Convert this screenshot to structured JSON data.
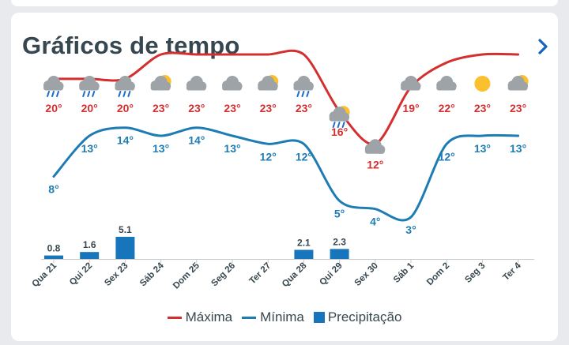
{
  "card": {
    "title": "Gráficos de tempo"
  },
  "colors": {
    "max": "#d32f2f",
    "min": "#1e7cb4",
    "precip": "#1675bb",
    "label": "#37474f",
    "sun": "#fbc02d",
    "cloud": "#9ea3a8",
    "rain": "#1e6ec8"
  },
  "legend": {
    "max_label": "Máxima",
    "min_label": "Mínima",
    "precip_label": "Precipitação"
  },
  "chart_data": {
    "type": "line",
    "categories": [
      "Qua 21",
      "Qui 22",
      "Sex 23",
      "Sáb 24",
      "Dom 25",
      "Seg 26",
      "Ter 27",
      "Qua 28",
      "Qui 29",
      "Sex 30",
      "Sáb 1",
      "Dom 2",
      "Seg 3",
      "Ter 4"
    ],
    "icons": [
      "cloud-rain-icon",
      "cloud-rain-icon",
      "cloud-rain-icon",
      "sun-cloud-icon",
      "cloud-icon",
      "cloud-icon",
      "sun-cloud-icon",
      "cloud-rain-icon",
      "sun-cloud-rain-icon",
      "cloud-icon",
      "cloud-icon",
      "cloud-icon",
      "sun-icon",
      "sun-cloud-icon"
    ],
    "series": [
      {
        "name": "Máxima",
        "unit": "°",
        "values": [
          20,
          20,
          20,
          23,
          23,
          23,
          23,
          23,
          16,
          12,
          19,
          22,
          23,
          23
        ]
      },
      {
        "name": "Mínima",
        "unit": "°",
        "values": [
          8,
          13,
          14,
          13,
          14,
          13,
          12,
          12,
          5,
          4,
          3,
          12,
          13,
          13
        ]
      },
      {
        "name": "Precipitação",
        "values": [
          0.8,
          1.6,
          5.1,
          0,
          0,
          0,
          0,
          2.1,
          2.3,
          0,
          0,
          0,
          0,
          0
        ],
        "labels": [
          "0.8",
          "1.6",
          "5.1",
          "",
          "",
          "",
          "",
          "2.1",
          "2.3",
          "",
          "",
          "",
          "",
          ""
        ]
      }
    ]
  }
}
